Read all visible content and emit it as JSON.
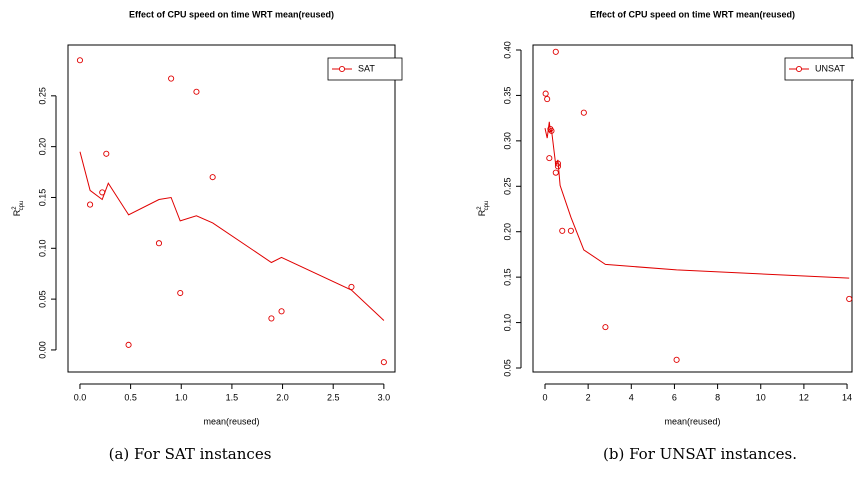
{
  "chart_data": [
    {
      "type": "scatter",
      "title": "Effect of CPU speed on time WRT mean(reused)",
      "xlabel": "mean(reused)",
      "ylabel": {
        "base": "R",
        "sup": "2",
        "sub": "cpu"
      },
      "caption": "(a) For SAT instances",
      "xlim": [
        -0.118,
        3.11
      ],
      "ylim": [
        -0.0217,
        0.3
      ],
      "xticks": [
        {
          "value": 0,
          "label": "0.0"
        },
        {
          "value": 0.5,
          "label": "0.5"
        },
        {
          "value": 1,
          "label": "1.0"
        },
        {
          "value": 1.5,
          "label": "1.5"
        },
        {
          "value": 2,
          "label": "2.0"
        },
        {
          "value": 2.5,
          "label": "2.5"
        },
        {
          "value": 3,
          "label": "3.0"
        }
      ],
      "yticks": [
        {
          "value": 0,
          "label": "0.00"
        },
        {
          "value": 0.05,
          "label": "0.05"
        },
        {
          "value": 0.1,
          "label": "0.10"
        },
        {
          "value": 0.15,
          "label": "0.15"
        },
        {
          "value": 0.2,
          "label": "0.20"
        },
        {
          "value": 0.25,
          "label": "0.25"
        }
      ],
      "legend": "topright",
      "series": [
        {
          "name": "SAT",
          "color": "#e00000",
          "x": [
            0.0,
            0.1,
            0.22,
            0.26,
            0.48,
            0.78,
            0.9,
            0.99,
            1.15,
            1.31,
            1.89,
            1.99,
            2.68,
            3.0
          ],
          "values": [
            0.285,
            0.143,
            0.155,
            0.193,
            0.005,
            0.105,
            0.267,
            0.056,
            0.254,
            0.17,
            0.031,
            0.038,
            0.062,
            -0.012
          ]
        }
      ],
      "fit": {
        "x": [
          0.0,
          0.1,
          0.22,
          0.28,
          0.48,
          0.78,
          0.9,
          0.99,
          1.15,
          1.31,
          1.89,
          1.99,
          2.68,
          3.0
        ],
        "values": [
          0.195,
          0.157,
          0.148,
          0.164,
          0.133,
          0.148,
          0.15,
          0.127,
          0.132,
          0.125,
          0.086,
          0.091,
          0.059,
          0.029
        ]
      }
    },
    {
      "type": "scatter",
      "title": "Effect of CPU speed on time WRT mean(reused)",
      "xlabel": "mean(reused)",
      "ylabel": {
        "base": "R",
        "sup": "2",
        "sub": "cpu"
      },
      "caption": "(b) For UNSAT instances.",
      "xlim": [
        -0.556,
        14.23
      ],
      "ylim": [
        0.0456,
        0.4055
      ],
      "xticks": [
        0,
        2,
        4,
        6,
        8,
        10,
        12,
        14
      ],
      "yticks": [
        {
          "value": 0.05,
          "label": "0.05"
        },
        {
          "value": 0.1,
          "label": "0.10"
        },
        {
          "value": 0.15,
          "label": "0.15"
        },
        {
          "value": 0.2,
          "label": "0.20"
        },
        {
          "value": 0.25,
          "label": "0.25"
        },
        {
          "value": 0.3,
          "label": "0.30"
        },
        {
          "value": 0.35,
          "label": "0.35"
        },
        {
          "value": 0.4,
          "label": "0.40"
        }
      ],
      "legend": "topright",
      "series": [
        {
          "name": "UNSAT",
          "color": "#e00000",
          "x": [
            0.03,
            0.1,
            0.2,
            0.25,
            0.3,
            0.5,
            0.5,
            0.6,
            0.6,
            0.8,
            1.2,
            1.8,
            2.8,
            6.1,
            14.1
          ],
          "values": [
            0.352,
            0.346,
            0.281,
            0.313,
            0.311,
            0.398,
            0.265,
            0.272,
            0.275,
            0.201,
            0.201,
            0.331,
            0.095,
            0.059,
            0.126
          ]
        }
      ],
      "fit": {
        "x": [
          0.0,
          0.1,
          0.2,
          0.25,
          0.3,
          0.5,
          0.6,
          0.7,
          1.2,
          1.8,
          2.8,
          6.1,
          14.1
        ],
        "values": [
          0.314,
          0.303,
          0.321,
          0.31,
          0.312,
          0.273,
          0.279,
          0.251,
          0.216,
          0.18,
          0.164,
          0.158,
          0.149
        ]
      }
    }
  ]
}
